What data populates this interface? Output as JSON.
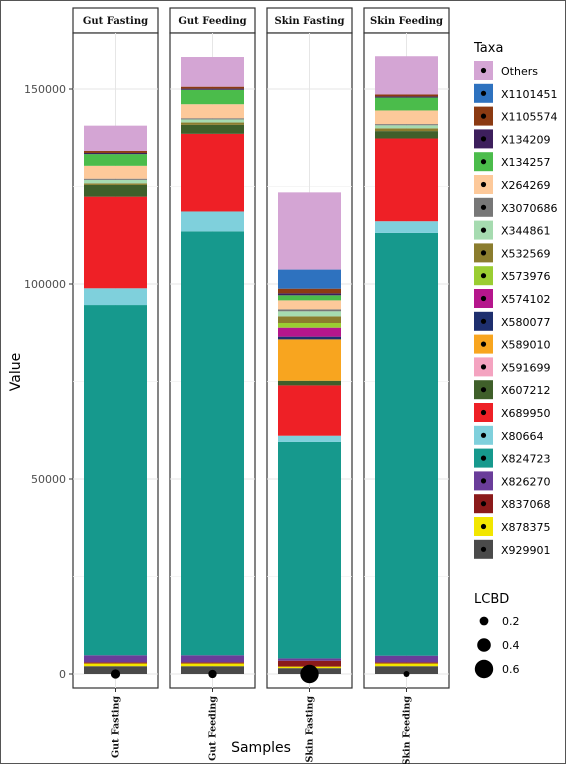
{
  "chart_data": {
    "type": "bar",
    "stacked": true,
    "facets": [
      "Gut Fasting",
      "Gut Feeding",
      "Skin Fasting",
      "Skin Feeding"
    ],
    "categories": [
      "Gut Fasting",
      "Gut Feeding",
      "Skin Fasting",
      "Skin Feeding"
    ],
    "xlabel": "Samples",
    "ylabel": "Value",
    "ylim": [
      0,
      163000
    ],
    "yticks": [
      0,
      50000,
      100000,
      150000
    ],
    "ytick_labels": [
      "0",
      "50000",
      "100000",
      "150000"
    ],
    "grid": true,
    "legend_position": "right",
    "taxa_legend_title": "Taxa",
    "series": [
      {
        "name": "X929901",
        "color": "#4a4a4a",
        "values": [
          2000,
          2000,
          1500,
          2000
        ]
      },
      {
        "name": "X878375",
        "color": "#f2e600",
        "values": [
          700,
          700,
          400,
          700
        ]
      },
      {
        "name": "X837068",
        "color": "#8b1a1a",
        "values": [
          300,
          300,
          1500,
          300
        ]
      },
      {
        "name": "X826270",
        "color": "#6a3d9a",
        "values": [
          1800,
          1800,
          600,
          1700
        ]
      },
      {
        "name": "X824723",
        "color": "#16998d",
        "values": [
          89800,
          108700,
          55500,
          108400
        ]
      },
      {
        "name": "X80664",
        "color": "#7fd0dc",
        "values": [
          4300,
          5100,
          1600,
          3000
        ]
      },
      {
        "name": "X689950",
        "color": "#ee2026",
        "values": [
          23500,
          19900,
          12900,
          21200
        ]
      },
      {
        "name": "X607212",
        "color": "#3f5f2a",
        "values": [
          3000,
          2300,
          1200,
          1900
        ]
      },
      {
        "name": "X591699",
        "color": "#f4a3c0",
        "values": [
          0,
          0,
          0,
          0
        ]
      },
      {
        "name": "X589010",
        "color": "#f8a51f",
        "values": [
          0,
          0,
          10600,
          0
        ]
      },
      {
        "name": "X580077",
        "color": "#1e2f6e",
        "values": [
          0,
          0,
          700,
          0
        ]
      },
      {
        "name": "X574102",
        "color": "#b5168c",
        "values": [
          0,
          0,
          2300,
          0
        ]
      },
      {
        "name": "X573976",
        "color": "#9acd32",
        "values": [
          0,
          0,
          1200,
          0
        ]
      },
      {
        "name": "X532569",
        "color": "#8b7d2e",
        "values": [
          400,
          600,
          1700,
          700
        ]
      },
      {
        "name": "X344861",
        "color": "#a6dbb0",
        "values": [
          900,
          800,
          1300,
          800
        ]
      },
      {
        "name": "X3070686",
        "color": "#777777",
        "values": [
          300,
          300,
          500,
          300
        ]
      },
      {
        "name": "X264269",
        "color": "#fdc99a",
        "values": [
          3300,
          3600,
          2300,
          3500
        ]
      },
      {
        "name": "X134257",
        "color": "#4bbc4b",
        "values": [
          3000,
          3700,
          1300,
          3300
        ]
      },
      {
        "name": "X134209",
        "color": "#3d1f5c",
        "values": [
          300,
          300,
          500,
          300
        ]
      },
      {
        "name": "X1105574",
        "color": "#8b3a12",
        "values": [
          500,
          500,
          1200,
          500
        ]
      },
      {
        "name": "X1101451",
        "color": "#2e72bf",
        "values": [
          0,
          0,
          4900,
          0
        ]
      },
      {
        "name": "Others",
        "color": "#d4a5d4",
        "values": [
          6500,
          7600,
          19800,
          9800
        ]
      }
    ],
    "lcbd": {
      "legend_title": "LCBD",
      "legend_values": [
        0.2,
        0.4,
        0.6
      ],
      "legend_labels": [
        "0.2",
        "0.4",
        "0.6"
      ],
      "values": [
        0.22,
        0.18,
        0.6,
        0.08
      ]
    }
  }
}
